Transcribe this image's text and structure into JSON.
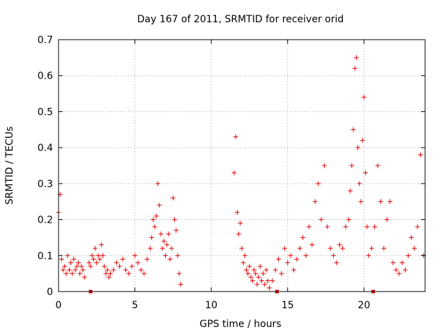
{
  "chart_data": {
    "type": "scatter",
    "title": "Day 167 of 2011, SRMTID for receiver orid",
    "xlabel": "GPS time / hours",
    "ylabel": "SRMTID / TECUs",
    "xlim": [
      0,
      24
    ],
    "ylim": [
      0,
      0.7
    ],
    "x_ticks": [
      0,
      5,
      10,
      15,
      20
    ],
    "y_ticks": [
      0,
      0.1,
      0.2,
      0.3,
      0.4,
      0.5,
      0.6,
      0.7
    ],
    "x_tick_labels": [
      "0",
      "5",
      "10",
      "15",
      "20"
    ],
    "y_tick_labels": [
      "0",
      "0.1",
      "0.2",
      "0.3",
      "0.4",
      "0.5",
      "0.6",
      "0.7"
    ],
    "grid": true,
    "marker": "+",
    "color": "#e00000",
    "segments": [
      {
        "x": [
          0.0,
          0.1,
          0.2,
          0.3,
          0.4,
          0.5,
          0.6,
          0.7,
          0.8,
          0.9,
          1.0,
          1.1,
          1.2,
          1.3,
          1.4,
          1.5,
          1.6,
          1.7
        ],
        "y": [
          0.22,
          0.27,
          0.09,
          0.06,
          0.07,
          0.05,
          0.1,
          0.06,
          0.08,
          0.05,
          0.09,
          0.06,
          0.07,
          0.08,
          0.05,
          0.07,
          0.06,
          0.04
        ]
      },
      {
        "x": [
          2.0,
          2.1,
          2.2,
          2.3,
          2.4,
          2.5,
          2.6,
          2.7,
          2.8,
          2.9,
          3.0,
          3.1,
          3.2,
          3.3
        ],
        "y": [
          0.08,
          0.07,
          0.1,
          0.09,
          0.12,
          0.08,
          0.1,
          0.09,
          0.13,
          0.1,
          0.07,
          0.05,
          0.06,
          0.04
        ]
      },
      {
        "x": [
          3.4,
          3.6,
          3.8,
          4.0,
          4.2,
          4.4,
          4.6,
          4.8,
          5.0,
          5.2,
          5.4,
          5.6,
          5.8,
          6.0
        ],
        "y": [
          0.05,
          0.06,
          0.08,
          0.07,
          0.09,
          0.06,
          0.05,
          0.07,
          0.1,
          0.08,
          0.06,
          0.05,
          0.09,
          0.12
        ]
      },
      {
        "x": [
          6.1,
          6.2,
          6.3,
          6.4,
          6.5,
          6.6,
          6.7,
          6.8,
          6.9,
          7.0,
          7.1,
          7.2,
          7.3,
          7.4,
          7.5,
          7.6,
          7.7,
          7.8,
          7.9,
          8.0
        ],
        "y": [
          0.15,
          0.2,
          0.18,
          0.21,
          0.3,
          0.24,
          0.16,
          0.12,
          0.14,
          0.1,
          0.13,
          0.16,
          0.09,
          0.12,
          0.26,
          0.2,
          0.17,
          0.1,
          0.05,
          0.02
        ]
      },
      {
        "x": [
          11.5,
          11.6,
          11.7,
          11.8,
          11.9,
          12.0,
          12.1,
          12.2,
          12.3,
          12.4,
          12.5,
          12.6,
          12.7,
          12.8,
          12.9,
          13.0,
          13.1,
          13.2,
          13.3,
          13.4,
          13.5,
          13.6,
          13.7,
          13.8
        ],
        "y": [
          0.33,
          0.43,
          0.22,
          0.16,
          0.19,
          0.12,
          0.08,
          0.1,
          0.06,
          0.05,
          0.07,
          0.04,
          0.03,
          0.06,
          0.05,
          0.02,
          0.04,
          0.07,
          0.03,
          0.05,
          0.02,
          0.06,
          0.03,
          0.01
        ]
      },
      {
        "x": [
          14.0,
          14.2,
          14.4,
          14.6,
          14.8,
          15.0,
          15.2,
          15.4,
          15.6,
          15.8,
          16.0,
          16.2,
          16.4,
          16.6,
          16.8,
          17.0,
          17.2,
          17.4,
          17.6,
          17.8,
          18.0
        ],
        "y": [
          0.03,
          0.06,
          0.09,
          0.05,
          0.12,
          0.08,
          0.1,
          0.06,
          0.09,
          0.12,
          0.15,
          0.1,
          0.18,
          0.13,
          0.25,
          0.3,
          0.2,
          0.35,
          0.18,
          0.12,
          0.1
        ]
      },
      {
        "x": [
          18.2,
          18.4,
          18.6,
          18.8,
          19.0,
          19.1,
          19.2,
          19.3,
          19.4,
          19.5,
          19.6,
          19.7,
          19.8,
          19.9,
          20.0,
          20.1,
          20.2,
          20.3
        ],
        "y": [
          0.08,
          0.13,
          0.12,
          0.18,
          0.2,
          0.28,
          0.35,
          0.45,
          0.62,
          0.65,
          0.4,
          0.3,
          0.25,
          0.42,
          0.54,
          0.33,
          0.18,
          0.1
        ]
      },
      {
        "x": [
          20.5,
          20.7,
          20.9,
          21.1,
          21.3,
          21.5,
          21.7,
          21.9,
          22.1,
          22.3,
          22.5,
          22.7,
          22.9,
          23.1,
          23.3,
          23.5,
          23.7,
          23.9
        ],
        "y": [
          0.12,
          0.18,
          0.35,
          0.25,
          0.12,
          0.2,
          0.25,
          0.08,
          0.06,
          0.05,
          0.08,
          0.06,
          0.1,
          0.15,
          0.12,
          0.18,
          0.38,
          0.1
        ]
      }
    ],
    "flagged_points": [
      {
        "x": 2.1,
        "y": 0
      },
      {
        "x": 14.3,
        "y": 0
      },
      {
        "x": 20.6,
        "y": 0
      }
    ]
  }
}
